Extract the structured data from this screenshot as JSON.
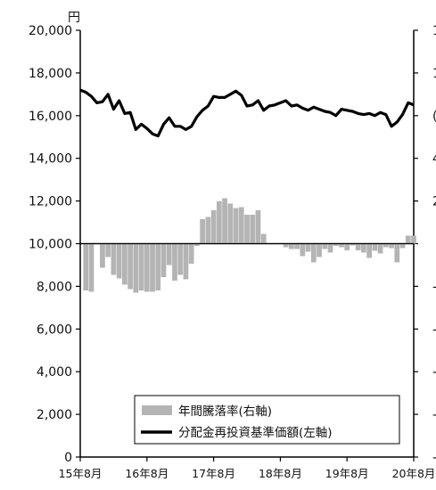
{
  "chart_data": {
    "type": "line+bar",
    "left_axis": {
      "unit": "円",
      "ylim": [
        0,
        20000
      ],
      "ticks": [
        "0",
        "2,000",
        "4,000",
        "6,000",
        "8,000",
        "10,000",
        "12,000",
        "14,000",
        "16,000",
        "18,000",
        "20,000"
      ]
    },
    "right_axis": {
      "visible_tick_fragments": [
        "1",
        "1",
        "(",
        "4",
        "2",
        "",
        "-",
        "-",
        "-",
        "-",
        "-"
      ]
    },
    "x_ticks": [
      "15年8月",
      "16年8月",
      "17年8月",
      "18年8月",
      "19年8月",
      "20年8月"
    ],
    "legend": {
      "placement": "bottom-right",
      "entries": [
        {
          "label": "年間騰落率(右軸)",
          "kind": "bar",
          "color": "#b4b4b4"
        },
        {
          "label": "分配金再投資基準価額(左軸)",
          "kind": "line",
          "color": "#000000"
        }
      ]
    },
    "x": [
      "2015-08",
      "2015-09",
      "2015-10",
      "2015-11",
      "2015-12",
      "2016-01",
      "2016-02",
      "2016-03",
      "2016-04",
      "2016-05",
      "2016-06",
      "2016-07",
      "2016-08",
      "2016-09",
      "2016-10",
      "2016-11",
      "2016-12",
      "2017-01",
      "2017-02",
      "2017-03",
      "2017-04",
      "2017-05",
      "2017-06",
      "2017-07",
      "2017-08",
      "2017-09",
      "2017-10",
      "2017-11",
      "2017-12",
      "2018-01",
      "2018-02",
      "2018-03",
      "2018-04",
      "2018-05",
      "2018-06",
      "2018-07",
      "2018-08",
      "2018-09",
      "2018-10",
      "2018-11",
      "2018-12",
      "2019-01",
      "2019-02",
      "2019-03",
      "2019-04",
      "2019-05",
      "2019-06",
      "2019-07",
      "2019-08",
      "2019-09",
      "2019-10",
      "2019-11",
      "2019-12",
      "2020-01",
      "2020-02",
      "2020-03",
      "2020-04",
      "2020-05",
      "2020-06",
      "2020-07",
      "2020-08"
    ],
    "series": [
      {
        "kind": "line",
        "axis": "left",
        "values": [
          17200,
          17100,
          16900,
          16600,
          16650,
          17000,
          16300,
          16700,
          16100,
          16150,
          15350,
          15600,
          15400,
          15150,
          15050,
          15600,
          15900,
          15500,
          15500,
          15350,
          15500,
          15950,
          16250,
          16450,
          16900,
          16850,
          16850,
          17000,
          17150,
          16950,
          16450,
          16500,
          16700,
          16250,
          16450,
          16500,
          16600,
          16700,
          16450,
          16500,
          16350,
          16250,
          16400,
          16300,
          16200,
          16150,
          16000,
          16300,
          16250,
          16200,
          16100,
          16050,
          16100,
          16000,
          16150,
          16050,
          15500,
          15700,
          16050,
          16600,
          16500
        ]
      },
      {
        "kind": "bar",
        "axis": "right",
        "values": [
          0,
          -10.5,
          -10.8,
          0,
          -5.4,
          -3.0,
          -7.0,
          -7.8,
          -9.2,
          -10.2,
          -11.0,
          -10.5,
          -10.8,
          -10.8,
          -10.5,
          -7.5,
          -4.8,
          -8.3,
          -7.0,
          -8.0,
          -4.5,
          -0.5,
          5.5,
          6.0,
          7.5,
          9.5,
          10.2,
          9.0,
          8.0,
          8.2,
          6.5,
          6.5,
          7.5,
          2.2,
          0,
          0,
          0,
          -0.8,
          -1.2,
          -1.2,
          -2.8,
          -1.8,
          -4.2,
          -3.0,
          -1.2,
          -2.0,
          -0.5,
          -0.8,
          -1.5,
          -0.4,
          -1.5,
          -2.0,
          -3.2,
          -1.6,
          -2.2,
          -0.8,
          -1.0,
          -4.2,
          -1.0,
          1.8,
          1.8
        ]
      }
    ]
  }
}
